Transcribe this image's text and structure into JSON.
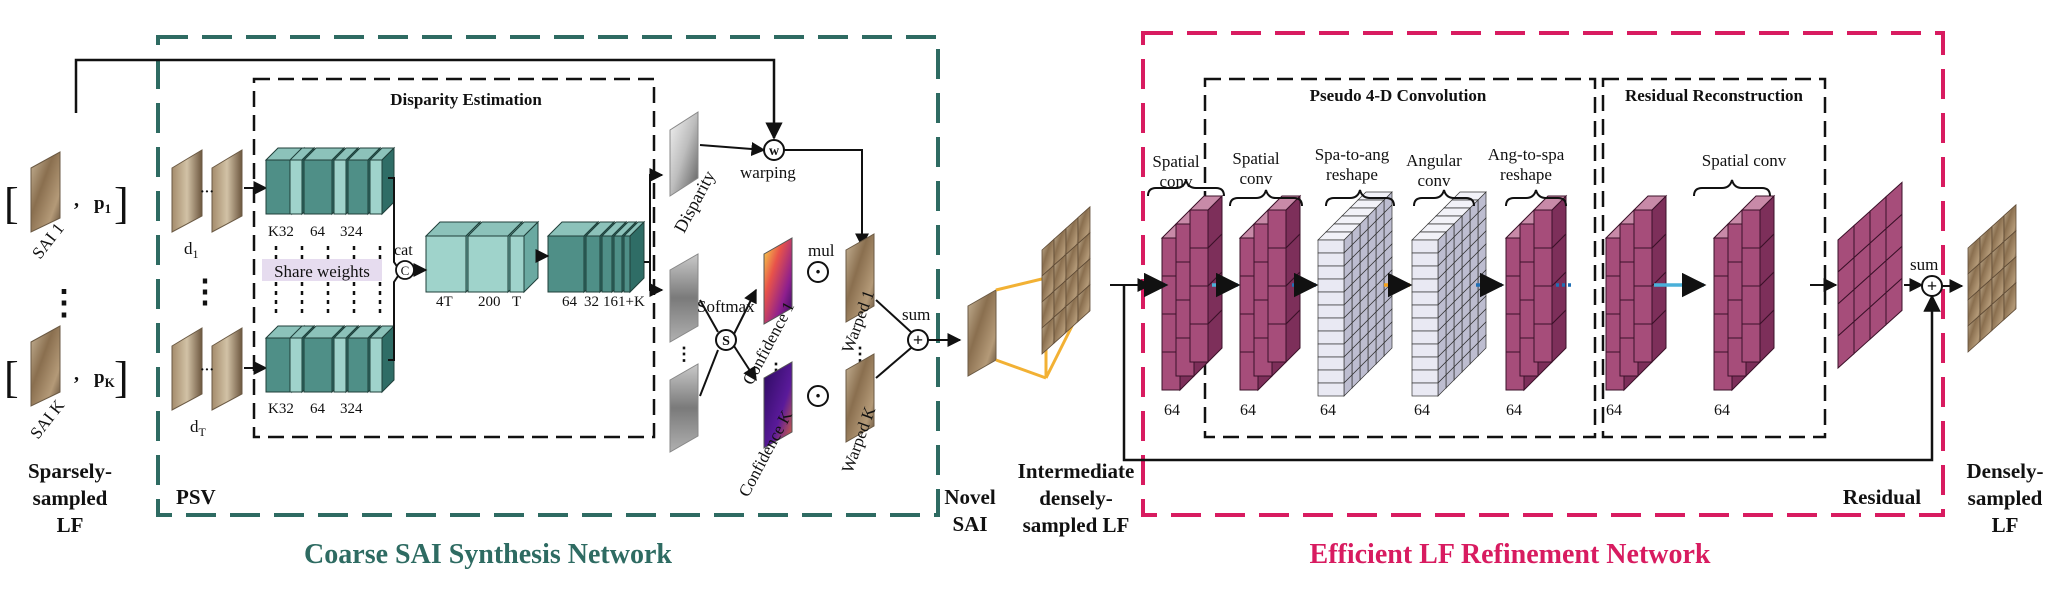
{
  "colors": {
    "coarse_border": "#2e6b62",
    "refine_border": "#d81b60",
    "teal_front": "#4f8f87",
    "teal_side": "#2f6d66",
    "teal_top": "#8cc2ba",
    "teal_light_front": "#9fd3cb",
    "teal_light_side": "#6aa9a1",
    "magenta_front": "#a64d7a",
    "magenta_side": "#7d2f5a",
    "magenta_top": "#c88aa8",
    "arrow_blue": "#4ab0d9",
    "arrow_dblue": "#1f6fb5",
    "arrow_orange": "#f4a11b",
    "frustum": "#f2b134",
    "title_coarse": "#2e6b62",
    "title_refine": "#d81b60"
  },
  "inputs": {
    "sai_1": "SAI 1",
    "sai_k": "SAI K",
    "comma": ",",
    "p1_base": "p",
    "p1_sub": "1",
    "pk_base": "p",
    "pk_sub": "K",
    "bracket_l": "[",
    "bracket_r": "]",
    "vdots": "⋮"
  },
  "left_caption": [
    "Sparsely-",
    "sampled",
    "LF"
  ],
  "psv": {
    "label": "PSV",
    "d1_base": "d",
    "d1_sub": "1",
    "dt_base": "d",
    "dt_sub": "T",
    "dots": "···"
  },
  "disparity_estimation": {
    "title": "Disparity Estimation",
    "upper_labels": [
      "K32",
      "64",
      "324"
    ],
    "lower_labels": [
      "K32",
      "64",
      "324"
    ],
    "share_weights": "Share weights",
    "cat": "cat",
    "cat_symbol": "C",
    "mid_labels": [
      "4T",
      "200",
      "T"
    ],
    "right_labels": [
      "64",
      "32",
      "16",
      "1+K"
    ]
  },
  "coarse_tail": {
    "disparity": "Disparity",
    "warping": "warping",
    "warp_symbol": "w",
    "softmax": "Softmax",
    "softmax_symbol": "S",
    "confidence_1": "Confidence 1",
    "confidence_k": "Confidence K",
    "mul": "mul",
    "mul_symbol": "·",
    "warped_1": "Warped 1",
    "warped_k": "Warped K",
    "sum": "sum",
    "sum_symbol": "+"
  },
  "novel_sai": [
    "Novel",
    "SAI"
  ],
  "intermediate": [
    "Intermediate",
    "densely-",
    "sampled LF"
  ],
  "pseudo4d": {
    "title": "Pseudo 4-D Convolution",
    "spatial_conv_1": [
      "Spatial",
      "conv"
    ],
    "spatial_conv_2": [
      "Spatial",
      "conv"
    ],
    "spa_to_ang": [
      "Spa-to-ang",
      "reshape"
    ],
    "angular_conv": [
      "Angular",
      "conv"
    ],
    "ang_to_spa": [
      "Ang-to-spa",
      "reshape"
    ],
    "bottom_labels": [
      "64",
      "64",
      "64",
      "64",
      "64"
    ]
  },
  "residual_reconstruction": {
    "title": "Residual Reconstruction",
    "spatial_conv": "Spatial conv",
    "bottom_labels": [
      "64",
      "64"
    ]
  },
  "residual": "Residual",
  "sum_label": "sum",
  "right_caption": [
    "Densely-",
    "sampled",
    "LF"
  ],
  "titles": {
    "coarse": "Coarse SAI Synthesis Network",
    "refine": "Efficient LF Refinement Network"
  }
}
